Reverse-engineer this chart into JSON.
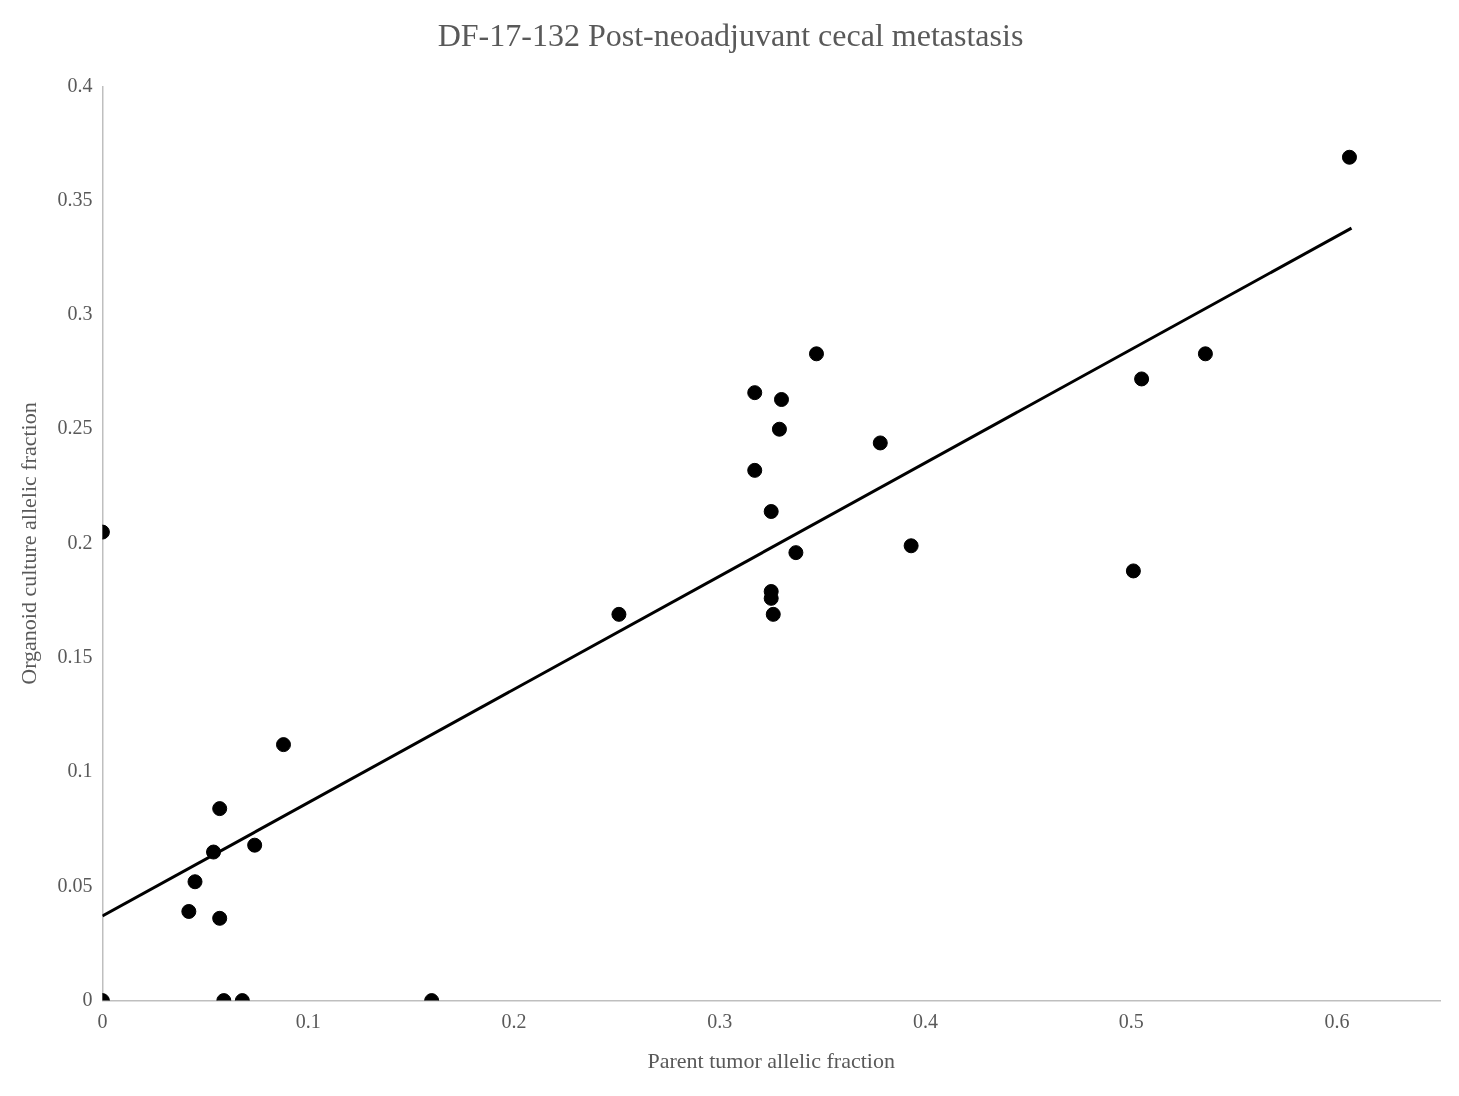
{
  "chart_data": {
    "type": "scatter",
    "title": "DF-17-132 Post-neoadjuvant cecal metastasis",
    "xlabel": "Parent tumor allelic fraction",
    "ylabel": "Organoid culture allelic fraction",
    "xlim": [
      0,
      0.65
    ],
    "ylim": [
      0,
      0.4
    ],
    "xticks": [
      0,
      0.1,
      0.2,
      0.3,
      0.4,
      0.5,
      0.6
    ],
    "yticks": [
      0,
      0.05,
      0.1,
      0.15,
      0.2,
      0.25,
      0.3,
      0.35,
      0.4
    ],
    "series": [
      {
        "marker": "circle",
        "color": "#000000",
        "x": [
          0,
          0,
          0.059,
          0.068,
          0.16,
          0.042,
          0.057,
          0.045,
          0.054,
          0.057,
          0.074,
          0.088,
          0.251,
          0.317,
          0.317,
          0.33,
          0.329,
          0.325,
          0.325,
          0.325,
          0.326,
          0.337,
          0.347,
          0.378,
          0.393,
          0.501,
          0.505,
          0.536,
          0.606
        ],
        "values": [
          0,
          0.205,
          0,
          0,
          0,
          0.039,
          0.036,
          0.052,
          0.065,
          0.084,
          0.068,
          0.112,
          0.169,
          0.266,
          0.232,
          0.263,
          0.25,
          0.214,
          0.179,
          0.176,
          0.169,
          0.196,
          0.283,
          0.244,
          0.199,
          0.188,
          0.272,
          0.283,
          0.369
        ]
      },
      {
        "type": "line",
        "color": "#000000",
        "x": [
          0,
          0.607
        ],
        "values": [
          0.037,
          0.338
        ]
      }
    ]
  }
}
